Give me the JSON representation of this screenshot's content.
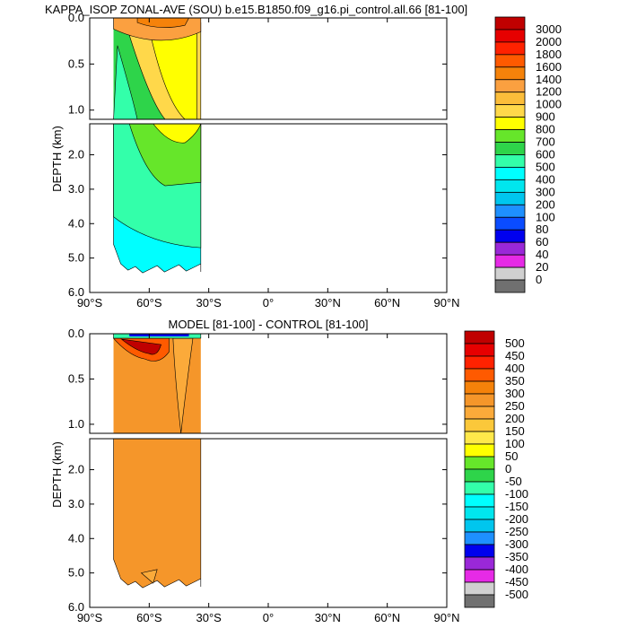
{
  "colors": {
    "bg": "#ffffff",
    "outline": "#000000"
  },
  "chart_data": [
    {
      "type": "contour",
      "title": "KAPPA_ISOP ZONAL-AVE (SOU) b.e15.B1850.f09_g16.pi_control.all.66 [81-100]",
      "ylabel": "DEPTH (km)",
      "xlabel": "",
      "upper_yticks": [
        "0.0",
        "0.5",
        "1.0"
      ],
      "lower_yticks": [
        "2.0",
        "3.0",
        "4.0",
        "5.0",
        "6.0"
      ],
      "xticks": [
        "90°S",
        "60°S",
        "30°S",
        "0°",
        "30°N",
        "60°N",
        "90°N"
      ],
      "xlim": [
        -90,
        90
      ],
      "ylim": [
        0,
        6.0
      ],
      "data_extent_lat": [
        -78,
        -34
      ],
      "colorbar_labels": [
        "3000",
        "2000",
        "1800",
        "1600",
        "1400",
        "1200",
        "1000",
        "900",
        "800",
        "700",
        "600",
        "500",
        "400",
        "300",
        "200",
        "100",
        "80",
        "60",
        "40",
        "20",
        "0"
      ],
      "colorbar_colors": [
        "#c00000",
        "#e60000",
        "#ff2200",
        "#ff5a00",
        "#f5820a",
        "#fba040",
        "#fbbd3a",
        "#ffd84a",
        "#ffff00",
        "#66e62a",
        "#2ed44a",
        "#33ffaa",
        "#00ffff",
        "#00e6ee",
        "#00c6ee",
        "#1e90ff",
        "#0a4cff",
        "#0000ee",
        "#9a28d8",
        "#e62ae6",
        "#d0d0d0",
        "#707070"
      ],
      "field": "base",
      "contour_regions": [
        {
          "level": "500-600",
          "desc": "deep ocean interior"
        },
        {
          "level": "600-800",
          "desc": "mid-depth band"
        },
        {
          "level": "800-1000",
          "desc": "upper ocean core"
        },
        {
          "level": "1000-1400",
          "desc": "near-surface maximum"
        }
      ]
    },
    {
      "type": "contour",
      "title": "MODEL [81-100] - CONTROL [81-100]",
      "ylabel": "DEPTH (km)",
      "xlabel": "",
      "upper_yticks": [
        "0.0",
        "0.5",
        "1.0"
      ],
      "lower_yticks": [
        "2.0",
        "3.0",
        "4.0",
        "5.0",
        "6.0"
      ],
      "xticks": [
        "90°S",
        "60°S",
        "30°S",
        "0°",
        "30°N",
        "60°N",
        "90°N"
      ],
      "xlim": [
        -90,
        90
      ],
      "ylim": [
        0,
        6.0
      ],
      "data_extent_lat": [
        -78,
        -34
      ],
      "colorbar_labels": [
        "500",
        "450",
        "400",
        "350",
        "300",
        "250",
        "200",
        "150",
        "100",
        "50",
        "0",
        "-50",
        "-100",
        "-150",
        "-200",
        "-250",
        "-300",
        "-350",
        "-400",
        "-450",
        "-500"
      ],
      "colorbar_colors": [
        "#c00000",
        "#e60000",
        "#ff2200",
        "#ff5a00",
        "#f5820a",
        "#f5962a",
        "#fbaa3a",
        "#fbc83a",
        "#ffe84a",
        "#ffff00",
        "#66e62a",
        "#2ed44a",
        "#33ffaa",
        "#00ffff",
        "#00e6ee",
        "#00c6ee",
        "#1e90ff",
        "#0000ee",
        "#9a28d8",
        "#e62ae6",
        "#d0d0d0",
        "#707070"
      ],
      "field": "diff",
      "contour_regions": [
        {
          "level": "250-300",
          "desc": "deep ocean interior"
        },
        {
          "level": "300-500",
          "desc": "near-surface maximum"
        },
        {
          "level": "-500-0",
          "desc": "thin surface layer"
        }
      ]
    }
  ]
}
